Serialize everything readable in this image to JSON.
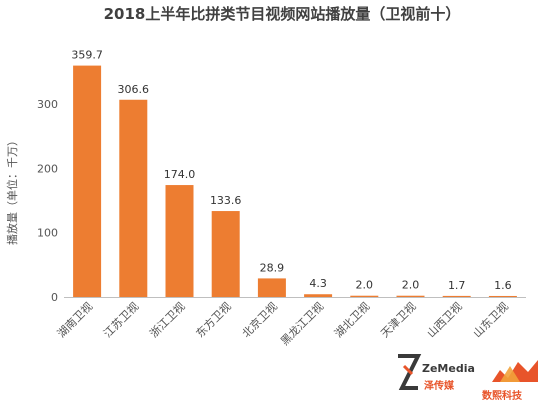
{
  "chart_data": {
    "type": "bar",
    "title": "2018上半年比拼类节目视频网站播放量（卫视前十）",
    "xlabel": "",
    "ylabel": "播放量（单位：千万）",
    "ylim": [
      0,
      400
    ],
    "yticks": [
      0,
      100,
      200,
      300
    ],
    "grid": false,
    "categories": [
      "湖南卫视",
      "江苏卫视",
      "浙江卫视",
      "东方卫视",
      "北京卫视",
      "黑龙江卫视",
      "湖北卫视",
      "天津卫视",
      "山西卫视",
      "山东卫视"
    ],
    "values": [
      359.7,
      306.6,
      174.0,
      133.6,
      28.9,
      4.3,
      2.0,
      2.0,
      1.7,
      1.6
    ],
    "value_labels": [
      "359.7",
      "306.6",
      "174.0",
      "133.6",
      "28.9",
      "4.3",
      "2.0",
      "2.0",
      "1.7",
      "1.6"
    ],
    "bar_color": "#ED7D31"
  },
  "branding": {
    "left_name": "ZeMedia",
    "left_sub": "泽传媒",
    "right_name": "数熙科技",
    "left_color": "#3A3A3A",
    "right_color": "#E8542A"
  }
}
